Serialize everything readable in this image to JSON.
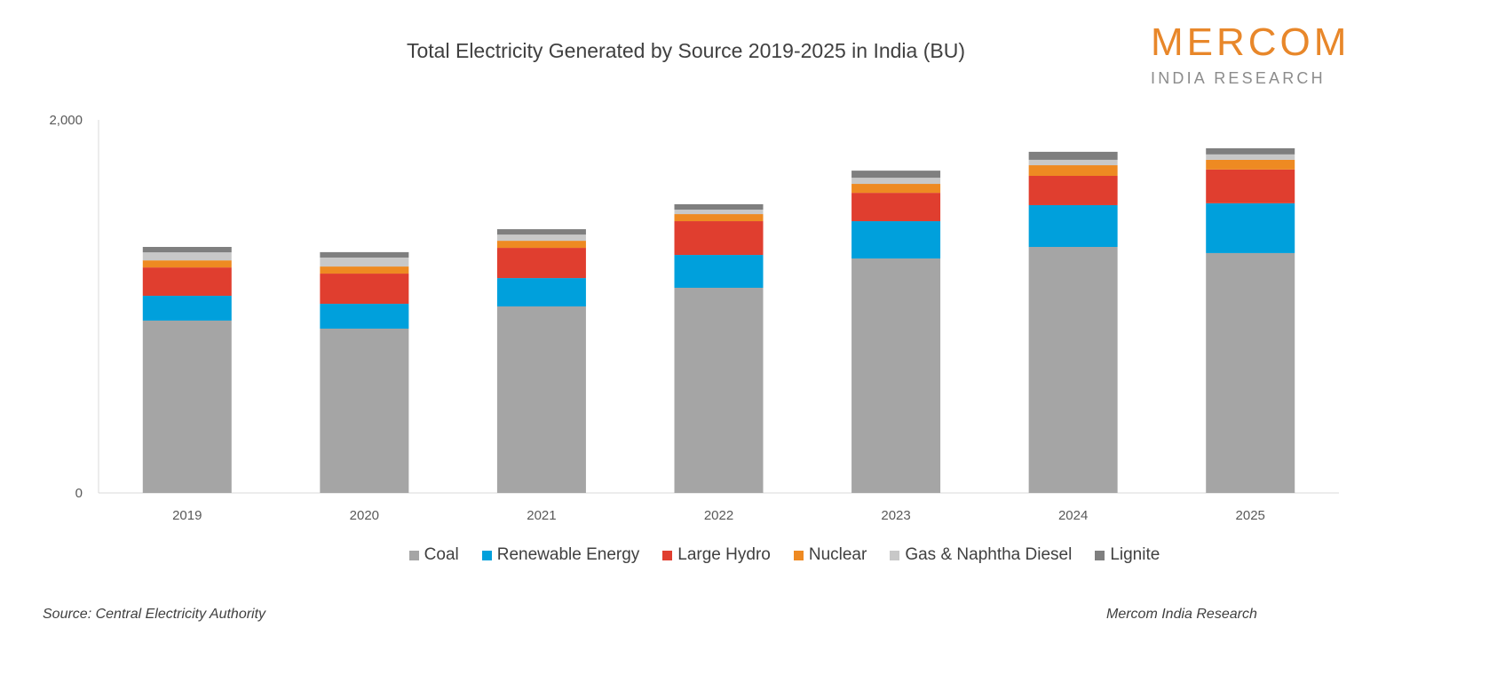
{
  "chart_data": {
    "type": "bar",
    "stacked": true,
    "title": "Total Electricity Generated by Source 2019-2025 in India (BU)",
    "xlabel": "",
    "ylabel": "",
    "ylim": [
      0,
      2000
    ],
    "yticks": [
      "0",
      "2,000"
    ],
    "grid": false,
    "legend_position": "bottom",
    "categories": [
      "2019",
      "2020",
      "2021",
      "2022",
      "2023",
      "2024",
      "2025"
    ],
    "series": [
      {
        "name": "Coal",
        "color": "#A5A5A5",
        "values": [
          924,
          881,
          1000,
          1100,
          1257,
          1319,
          1286
        ]
      },
      {
        "name": "Renewable Energy",
        "color": "#00A0DC",
        "values": [
          133,
          133,
          152,
          176,
          200,
          224,
          267
        ]
      },
      {
        "name": "Large Hydro",
        "color": "#E03E2F",
        "values": [
          152,
          162,
          162,
          181,
          152,
          157,
          181
        ]
      },
      {
        "name": "Nuclear",
        "color": "#EE8A22",
        "values": [
          38,
          38,
          38,
          38,
          48,
          57,
          52
        ]
      },
      {
        "name": "Gas & Naphtha Diesel",
        "color": "#C8C8C8",
        "values": [
          43,
          48,
          33,
          24,
          33,
          29,
          29
        ]
      },
      {
        "name": "Lignite",
        "color": "#7F7F7F",
        "values": [
          29,
          29,
          29,
          29,
          38,
          43,
          33
        ]
      }
    ]
  },
  "logo": {
    "brand": "MERCOM",
    "sub": "INDIA RESEARCH",
    "color": "#E8872A"
  },
  "footer": {
    "source": "Source: Central Electricity Authority",
    "credit": "Mercom India Research"
  }
}
